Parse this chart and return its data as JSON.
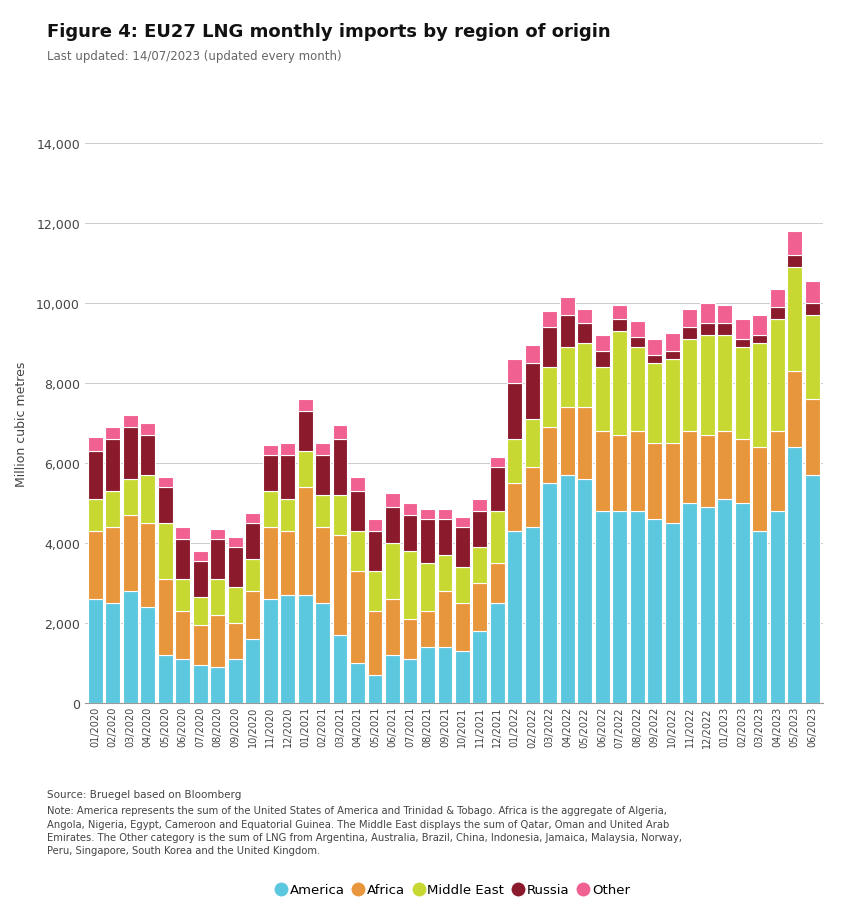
{
  "title": "Figure 4: EU27 LNG monthly imports by region of origin",
  "subtitle": "Last updated: 14/07/2023 (updated every month)",
  "ylabel": "Million cubic metres",
  "ylim": [
    0,
    14000
  ],
  "yticks": [
    0,
    2000,
    4000,
    6000,
    8000,
    10000,
    12000,
    14000
  ],
  "ytick_labels": [
    "0",
    "2,000",
    "4,000",
    "6,000",
    "8,000",
    "10,000",
    "12,000",
    "14,000"
  ],
  "colors": {
    "America": "#5BC8E0",
    "Africa": "#E8963C",
    "Middle East": "#C8D832",
    "Russia": "#8B1A2C",
    "Other": "#F06090"
  },
  "categories": [
    "America",
    "Africa",
    "Middle East",
    "Russia",
    "Other"
  ],
  "months": [
    "01/2020",
    "02/2020",
    "03/2020",
    "04/2020",
    "05/2020",
    "06/2020",
    "07/2020",
    "08/2020",
    "09/2020",
    "10/2020",
    "11/2020",
    "12/2020",
    "01/2021",
    "02/2021",
    "03/2021",
    "04/2021",
    "05/2021",
    "06/2021",
    "07/2021",
    "08/2021",
    "09/2021",
    "10/2021",
    "11/2021",
    "12/2021",
    "01/2022",
    "02/2022",
    "03/2022",
    "04/2022",
    "05/2022",
    "06/2022",
    "07/2022",
    "08/2022",
    "09/2022",
    "10/2022",
    "11/2022",
    "12/2022",
    "01/2023",
    "02/2023",
    "03/2023",
    "04/2023",
    "05/2023",
    "06/2023"
  ],
  "data": {
    "America": [
      2600,
      2500,
      2800,
      2400,
      1200,
      1100,
      950,
      900,
      1100,
      1600,
      2600,
      2700,
      2700,
      2500,
      1700,
      1000,
      700,
      1200,
      1100,
      1400,
      1400,
      1300,
      1800,
      2500,
      4300,
      4400,
      5500,
      5700,
      5600,
      4800,
      4800,
      4800,
      4600,
      4500,
      5000,
      4900,
      5100,
      5000,
      4300,
      4800,
      6400,
      5700
    ],
    "Africa": [
      1700,
      1900,
      1900,
      2100,
      1900,
      1200,
      1000,
      1300,
      900,
      1200,
      1800,
      1600,
      2700,
      1900,
      2500,
      2300,
      1600,
      1400,
      1000,
      900,
      1400,
      1200,
      1200,
      1000,
      1200,
      1500,
      1400,
      1700,
      1800,
      2000,
      1900,
      2000,
      1900,
      2000,
      1800,
      1800,
      1700,
      1600,
      2100,
      2000,
      1900,
      1900
    ],
    "Middle East": [
      800,
      900,
      900,
      1200,
      1400,
      800,
      700,
      900,
      900,
      800,
      900,
      800,
      900,
      800,
      1000,
      1000,
      1000,
      1400,
      1700,
      1200,
      900,
      900,
      900,
      1300,
      1100,
      1200,
      1500,
      1500,
      1600,
      1600,
      2600,
      2100,
      2000,
      2100,
      2300,
      2500,
      2400,
      2300,
      2600,
      2800,
      2600,
      2100
    ],
    "Russia": [
      1200,
      1300,
      1300,
      1000,
      900,
      1000,
      900,
      1000,
      1000,
      900,
      900,
      1100,
      1000,
      1000,
      1400,
      1000,
      1000,
      900,
      900,
      1100,
      900,
      1000,
      900,
      1100,
      1400,
      1400,
      1000,
      800,
      500,
      400,
      300,
      250,
      200,
      200,
      300,
      300,
      300,
      200,
      200,
      300,
      300,
      300
    ],
    "Other": [
      350,
      300,
      300,
      300,
      250,
      300,
      250,
      250,
      250,
      250,
      250,
      300,
      300,
      300,
      350,
      350,
      300,
      350,
      300,
      250,
      250,
      250,
      300,
      250,
      600,
      450,
      400,
      450,
      350,
      400,
      350,
      400,
      400,
      450,
      450,
      500,
      450,
      500,
      500,
      450,
      600,
      550
    ]
  },
  "source_note": "Source: Bruegel based on Bloomberg\nNote: America represents the sum of the United States of America and Trinidad & Tobago. Africa is the aggregate of Algeria,\nAngola, Nigeria, Egypt, Cameroon and Equatorial Guinea. The Middle East displays the sum of Qatar, Oman and United Arab\nEmirates. The Other category is the sum of LNG from Argentina, Australia, Brazil, China, Indonesia, Jamaica, Malaysia, Norway,\nPeru, Singapore, South Korea and the United Kingdom.",
  "background_color": "#FFFFFF",
  "bar_edge_color": "#FFFFFF",
  "grid_color": "#CCCCCC"
}
